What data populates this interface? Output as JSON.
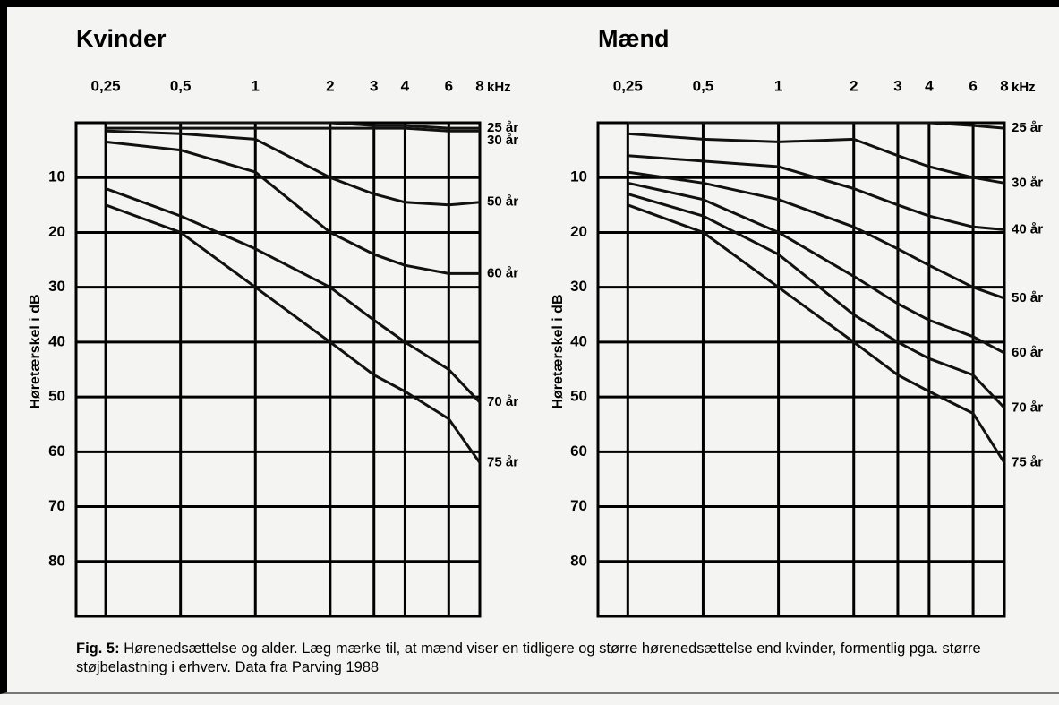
{
  "chart_data": [
    {
      "type": "line",
      "title": "Kvinder",
      "xlabel": "kHz",
      "ylabel": "Høretærskel i dB",
      "x": [
        0.25,
        0.5,
        1,
        2,
        3,
        4,
        6,
        8
      ],
      "xlim": [
        0.19,
        8
      ],
      "log_x": true,
      "xticks": [
        {
          "value": 0.25,
          "label": "0,25"
        },
        {
          "value": 0.5,
          "label": "0,5"
        },
        1,
        2,
        3,
        4,
        6,
        8
      ],
      "ylim": [
        0,
        90
      ],
      "y_inverted": true,
      "yticks": [
        10,
        20,
        30,
        40,
        50,
        60,
        70,
        80
      ],
      "grid": true,
      "series": [
        {
          "name": "25 år",
          "color": "#111111",
          "values": [
            0,
            0,
            0,
            0,
            0.5,
            0.5,
            1,
            1
          ]
        },
        {
          "name": "30 år",
          "color": "#111111",
          "values": [
            1,
            1,
            1,
            1,
            1,
            1,
            1.5,
            1.5
          ]
        },
        {
          "name": "50 år",
          "color": "#111111",
          "values": [
            1.5,
            2,
            3,
            10,
            13,
            14.5,
            15,
            14.5
          ]
        },
        {
          "name": "60 år",
          "color": "#111111",
          "values": [
            3.5,
            5,
            9,
            20,
            24,
            26,
            27.5,
            27.5
          ]
        },
        {
          "name": "70 år",
          "color": "#111111",
          "values": [
            12,
            17,
            23,
            30,
            36,
            40,
            45,
            51
          ]
        },
        {
          "name": "75 år",
          "color": "#111111",
          "values": [
            15,
            20,
            30,
            40,
            46,
            49,
            54,
            62
          ]
        }
      ]
    },
    {
      "type": "line",
      "title": "Mænd",
      "xlabel": "kHz",
      "ylabel": "Høretærskel i dB",
      "x": [
        0.25,
        0.5,
        1,
        2,
        3,
        4,
        6,
        8
      ],
      "xlim": [
        0.19,
        8
      ],
      "log_x": true,
      "xticks": [
        {
          "value": 0.25,
          "label": "0,25"
        },
        {
          "value": 0.5,
          "label": "0,5"
        },
        1,
        2,
        3,
        4,
        6,
        8
      ],
      "ylim": [
        0,
        90
      ],
      "y_inverted": true,
      "yticks": [
        10,
        20,
        30,
        40,
        50,
        60,
        70,
        80
      ],
      "grid": true,
      "series": [
        {
          "name": "25 år",
          "color": "#111111",
          "values": [
            0,
            0,
            0,
            0,
            0,
            0,
            0.5,
            1
          ]
        },
        {
          "name": "30 år",
          "color": "#111111",
          "values": [
            2,
            3,
            3.5,
            3,
            6,
            8,
            10,
            11
          ]
        },
        {
          "name": "40 år",
          "color": "#111111",
          "values": [
            6,
            7,
            8,
            12,
            15,
            17,
            19,
            19.5
          ]
        },
        {
          "name": "50 år",
          "color": "#111111",
          "values": [
            9,
            11,
            14,
            19,
            23,
            26,
            30,
            32
          ]
        },
        {
          "name": "60 år",
          "color": "#111111",
          "values": [
            11,
            14,
            20,
            28,
            33,
            36,
            39,
            42
          ]
        },
        {
          "name": "70 år",
          "color": "#111111",
          "values": [
            13,
            17,
            24,
            35,
            40,
            43,
            46,
            52
          ]
        },
        {
          "name": "75 år",
          "color": "#111111",
          "values": [
            15,
            20,
            30,
            40,
            46,
            49,
            53,
            62
          ]
        }
      ]
    }
  ],
  "caption": {
    "label": "Fig. 5:",
    "text": "Hørenedsættelse og alder. Læg mærke til, at mænd viser en tidligere og større hørenedsættelse end kvinder, formentlig  pga. større støjbelastning i erhverv. Data fra Parving 1988"
  }
}
